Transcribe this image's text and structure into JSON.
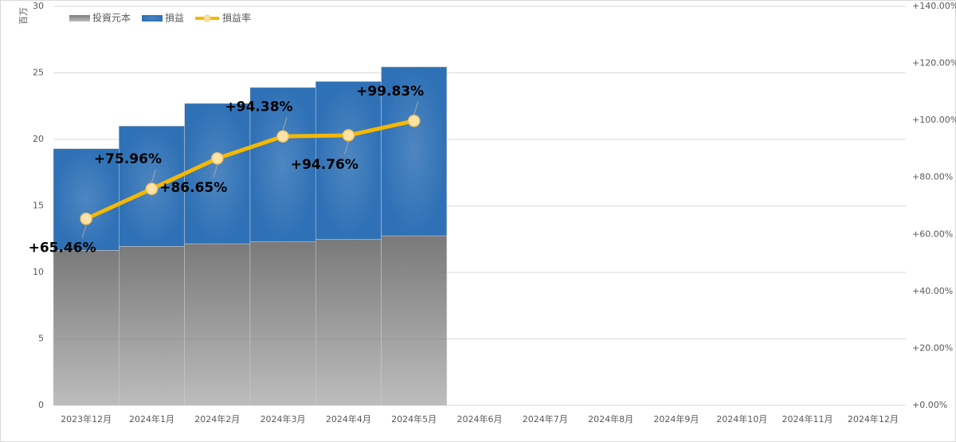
{
  "chart_data": {
    "type": "bar-line",
    "y_axis_label": "百万",
    "categories": [
      "2023年12月",
      "2024年1月",
      "2024年2月",
      "2024年3月",
      "2024年4月",
      "2024年5月",
      "2024年6月",
      "2024年7月",
      "2024年8月",
      "2024年9月",
      "2024年10月",
      "2024年11月",
      "2024年12月"
    ],
    "series": [
      {
        "name": "投資元本",
        "color": "#7a7a7a",
        "type": "bar",
        "values": [
          11.65,
          11.95,
          12.15,
          12.3,
          12.5,
          12.75,
          null,
          null,
          null,
          null,
          null,
          null,
          null
        ]
      },
      {
        "name": "損益",
        "color": "#2f71b6",
        "type": "bar",
        "values": [
          7.65,
          9.05,
          10.55,
          11.6,
          11.85,
          12.7,
          null,
          null,
          null,
          null,
          null,
          null,
          null
        ]
      },
      {
        "name": "損益率",
        "color": "#f5b800",
        "type": "line",
        "axis": "y2",
        "values": [
          65.46,
          75.96,
          86.65,
          94.38,
          94.76,
          99.83,
          null,
          null,
          null,
          null,
          null,
          null,
          null
        ],
        "value_labels": [
          "+65.46%",
          "+75.96%",
          "+86.65%",
          "+94.38%",
          "+94.76%",
          "+99.83%",
          null,
          null,
          null,
          null,
          null,
          null,
          null
        ]
      }
    ],
    "ylim": [
      0,
      30
    ],
    "yticks": [
      0,
      5,
      10,
      15,
      20,
      25,
      30
    ],
    "y2lim": [
      0,
      140
    ],
    "y2ticks": [
      {
        "value": 0,
        "label": "+0.00%"
      },
      {
        "value": 20,
        "label": "+20.00%"
      },
      {
        "value": 40,
        "label": "+40.00%"
      },
      {
        "value": 60,
        "label": "+60.00%"
      },
      {
        "value": 80,
        "label": "+80.00%"
      },
      {
        "value": 100,
        "label": "+100.00%"
      },
      {
        "value": 120,
        "label": "+120.00%"
      },
      {
        "value": 140,
        "label": "+140.00%"
      }
    ],
    "grid": true,
    "legend": "top-left"
  }
}
